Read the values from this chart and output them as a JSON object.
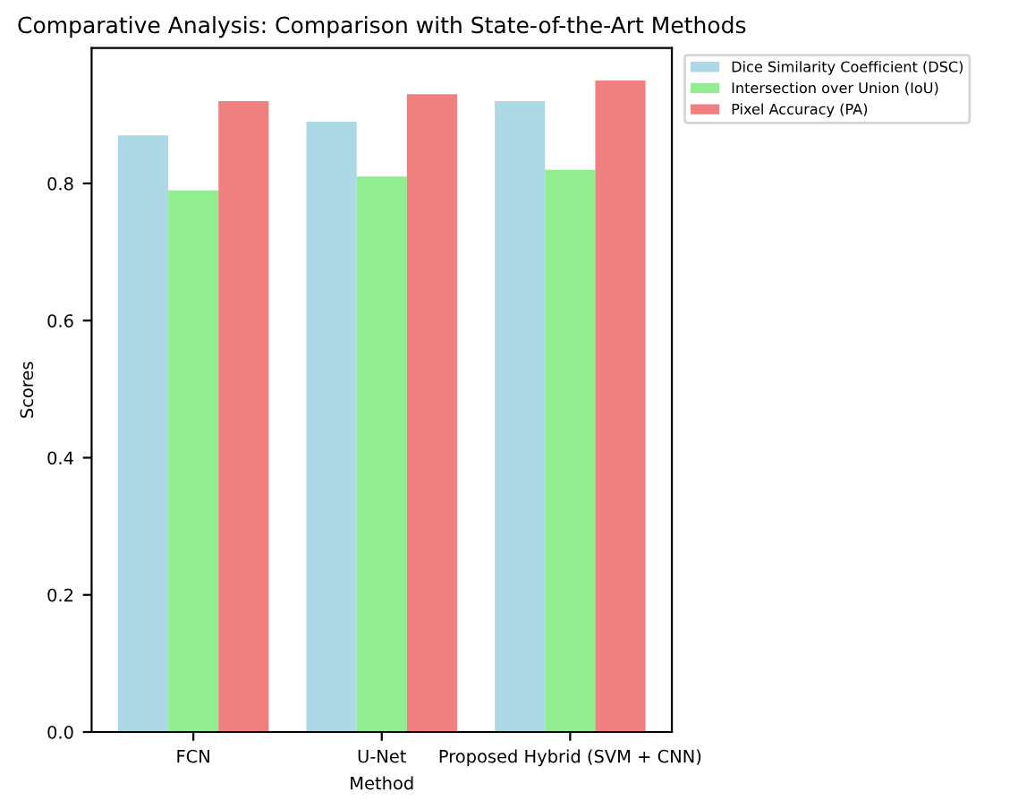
{
  "chart_data": {
    "type": "bar",
    "title": "Comparative Analysis: Comparison with State-of-the-Art Methods",
    "xlabel": "Method",
    "ylabel": "Scores",
    "categories": [
      "FCN",
      "U-Net",
      "Proposed Hybrid (SVM + CNN)"
    ],
    "series": [
      {
        "name": "Dice Similarity Coefficient (DSC)",
        "color": "#add8e6",
        "values": [
          0.87,
          0.89,
          0.92
        ]
      },
      {
        "name": "Intersection over Union (IoU)",
        "color": "#90ee90",
        "values": [
          0.79,
          0.81,
          0.82
        ]
      },
      {
        "name": "Pixel Accuracy (PA)",
        "color": "#f08080",
        "values": [
          0.92,
          0.93,
          0.95
        ]
      }
    ],
    "ylim": [
      0,
      0.9975
    ],
    "yticks": [
      {
        "value": 0,
        "label": "0.0"
      },
      0.2,
      0.4,
      0.6,
      0.8
    ],
    "legend": "top right"
  }
}
